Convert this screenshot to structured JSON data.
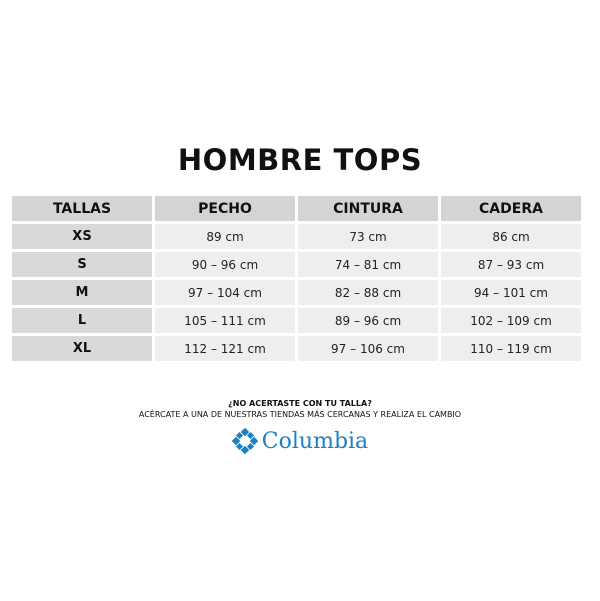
{
  "title": "HOMBRE TOPS",
  "headers": [
    "TALLAS",
    "PECHO",
    "CINTURA",
    "CADERA"
  ],
  "rows": [
    {
      "size": "XS",
      "pecho": "89 cm",
      "cintura": "73 cm",
      "cadera": "86 cm"
    },
    {
      "size": "S",
      "pecho": "90 – 96 cm",
      "cintura": "74 – 81 cm",
      "cadera": "87 – 93 cm"
    },
    {
      "size": "M",
      "pecho": "97 – 104 cm",
      "cintura": "82 – 88 cm",
      "cadera": "94 – 101 cm"
    },
    {
      "size": "L",
      "pecho": "105 – 111 cm",
      "cintura": "89 – 96 cm",
      "cadera": "102 – 109 cm"
    },
    {
      "size": "XL",
      "pecho": "112 – 121 cm",
      "cintura": "97 – 106 cm",
      "cadera": "110 – 119 cm"
    }
  ],
  "note": {
    "question": "¿NO ACERTASTE CON TU TALLA?",
    "advice": "ACÉRCATE A UNA DE NUESTRAS TIENDAS MÁS CERCANAS Y REALIZA EL CAMBIO"
  },
  "brand": {
    "name": "Columbia",
    "color": "#1c7fc4",
    "icon": "columbia-diamond-logo-icon"
  }
}
